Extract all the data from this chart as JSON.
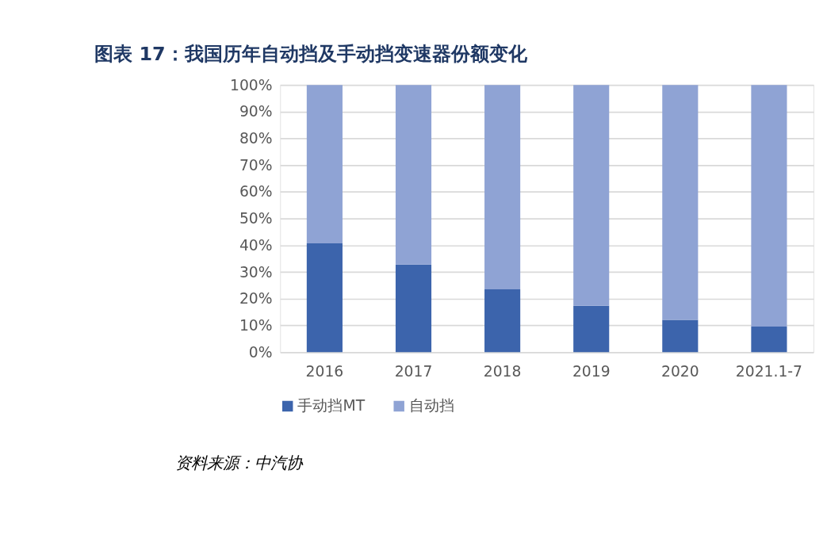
{
  "chart_data": {
    "type": "bar",
    "title": "图表 17：我国历年自动挡及手动挡变速器份额变化",
    "categories": [
      "2016",
      "2017",
      "2018",
      "2019",
      "2020",
      "2021.1-7"
    ],
    "stacked": true,
    "series": [
      {
        "name": "手动挡MT",
        "color": "#3c64ac",
        "values": [
          40.7,
          32.8,
          23.5,
          17.4,
          12.1,
          9.6
        ]
      },
      {
        "name": "自动挡",
        "color": "#8fa3d4",
        "values": [
          59.3,
          67.2,
          76.5,
          82.6,
          87.9,
          90.4
        ]
      }
    ],
    "ylim": [
      0,
      100
    ],
    "yticks": [
      {
        "value": 0,
        "label": "0%"
      },
      {
        "value": 10,
        "label": "10%"
      },
      {
        "value": 20,
        "label": "20%"
      },
      {
        "value": 30,
        "label": "30%"
      },
      {
        "value": 40,
        "label": "40%"
      },
      {
        "value": 50,
        "label": "50%"
      },
      {
        "value": 60,
        "label": "60%"
      },
      {
        "value": 70,
        "label": "70%"
      },
      {
        "value": 80,
        "label": "80%"
      },
      {
        "value": 90,
        "label": "90%"
      },
      {
        "value": 100,
        "label": "100%"
      }
    ],
    "grid": "y",
    "legend": "bottom",
    "annotations": [
      "资料来源：中汽协"
    ]
  }
}
